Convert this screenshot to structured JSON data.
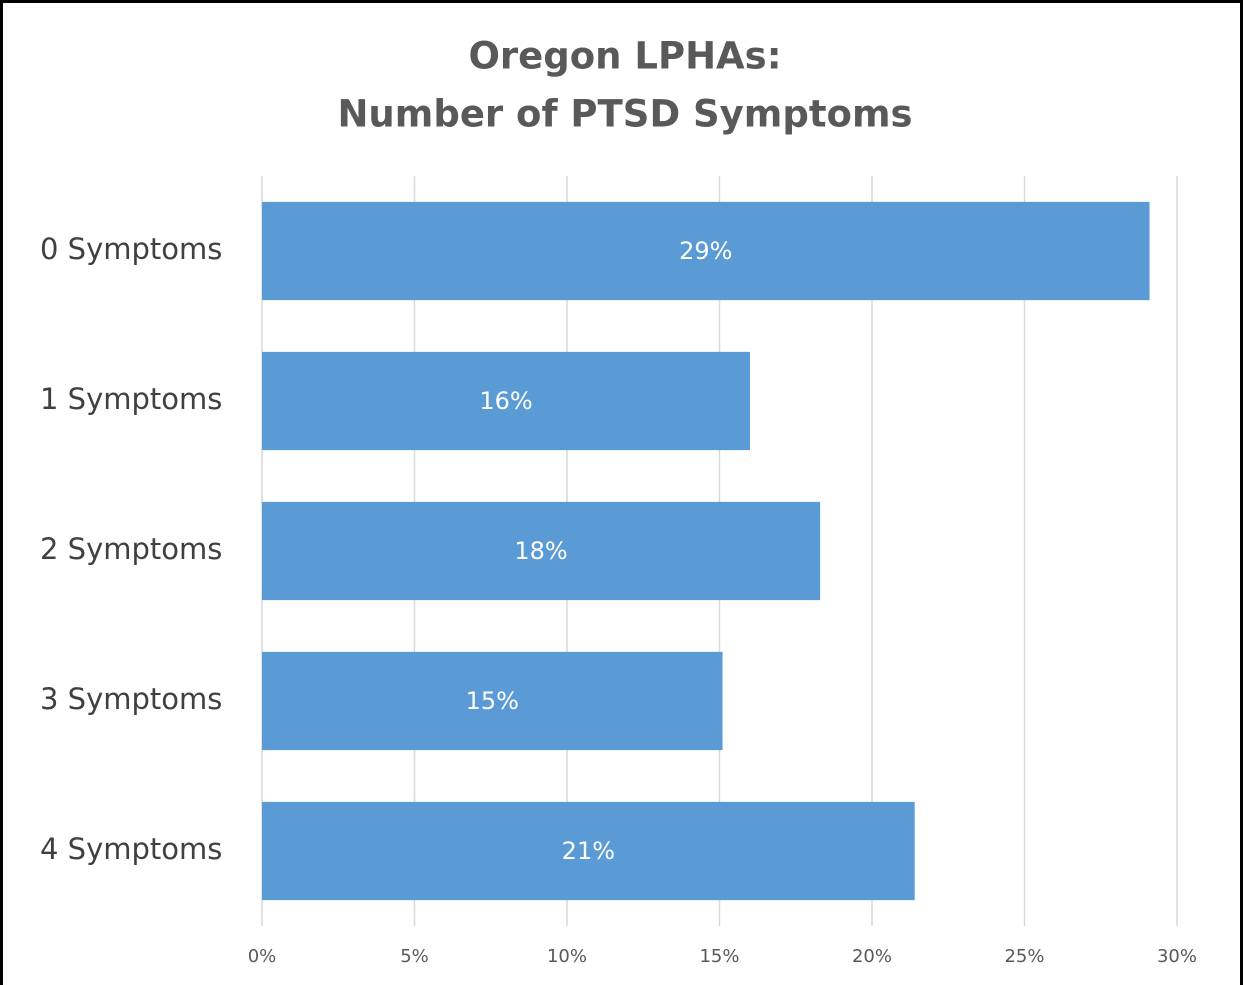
{
  "chart_data": {
    "type": "bar",
    "orientation": "horizontal",
    "title": [
      "Oregon LPHAs:",
      "Number of PTSD Symptoms"
    ],
    "categories": [
      "0 Symptoms",
      "1 Symptoms",
      "2 Symptoms",
      "3 Symptoms",
      "4 Symptoms"
    ],
    "values": [
      29.1,
      16.0,
      18.3,
      15.1,
      21.4
    ],
    "value_labels": [
      "29%",
      "16%",
      "18%",
      "15%",
      "21%"
    ],
    "color": "#5b9bd5",
    "xlim": [
      0,
      30
    ],
    "xticks": [
      {
        "value": 0,
        "label": "0%"
      },
      {
        "value": 5,
        "label": "5%"
      },
      {
        "value": 10,
        "label": "10%"
      },
      {
        "value": 15,
        "label": "15%"
      },
      {
        "value": 20,
        "label": "20%"
      },
      {
        "value": 25,
        "label": "25%"
      },
      {
        "value": 30,
        "label": "30%"
      }
    ],
    "grid": true
  }
}
